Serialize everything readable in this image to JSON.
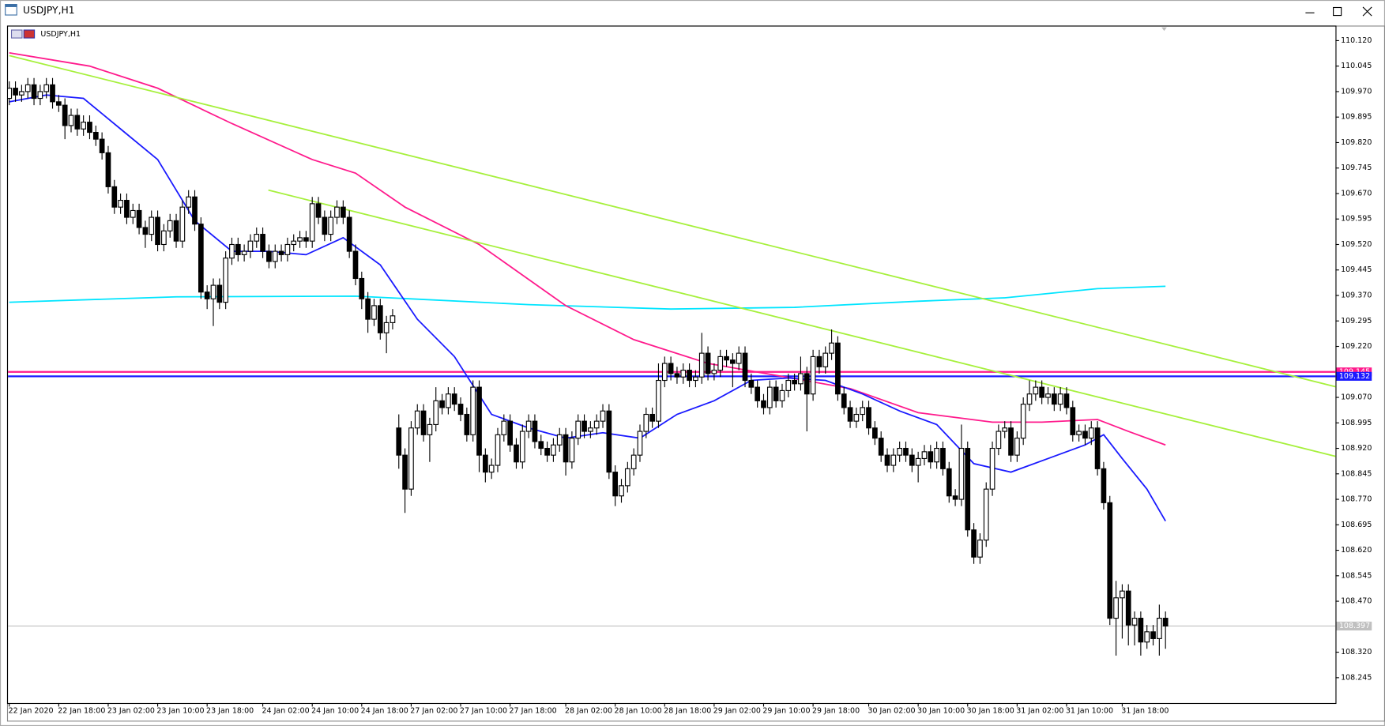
{
  "window": {
    "title": "USDJPY,H1"
  },
  "chart_data": {
    "type": "candlestick",
    "title": "USDJPY,H1",
    "categories": [
      "22 Jan 2020",
      null,
      null,
      null,
      null,
      null,
      null,
      null,
      "22 Jan 18:00",
      null,
      null,
      null,
      null,
      null,
      null,
      null,
      "23 Jan 02:00",
      null,
      null,
      null,
      null,
      null,
      null,
      null,
      "23 Jan 10:00",
      null,
      null,
      null,
      null,
      null,
      null,
      null,
      "23 Jan 18:00",
      null,
      null,
      null,
      null,
      null,
      null,
      null,
      null,
      "24 Jan 02:00",
      null,
      null,
      null,
      null,
      null,
      null,
      null,
      "24 Jan 10:00",
      null,
      null,
      null,
      null,
      null,
      null,
      null,
      "24 Jan 18:00",
      null,
      null,
      null,
      null,
      null,
      null,
      null,
      "27 Jan 02:00",
      null,
      null,
      null,
      null,
      null,
      null,
      null,
      "27 Jan 10:00",
      null,
      null,
      null,
      null,
      null,
      null,
      null,
      "27 Jan 18:00",
      null,
      null,
      null,
      null,
      null,
      null,
      null,
      null,
      "28 Jan 02:00",
      null,
      null,
      null,
      null,
      null,
      null,
      null,
      "28 Jan 10:00",
      null,
      null,
      null,
      null,
      null,
      null,
      null,
      "28 Jan 18:00",
      null,
      null,
      null,
      null,
      null,
      null,
      null,
      "29 Jan 02:00",
      null,
      null,
      null,
      null,
      null,
      null,
      null,
      "29 Jan 10:00",
      null,
      null,
      null,
      null,
      null,
      null,
      null,
      "29 Jan 18:00",
      null,
      null,
      null,
      null,
      null,
      null,
      null,
      null,
      "30 Jan 02:00",
      null,
      null,
      null,
      null,
      null,
      null,
      null,
      "30 Jan 10:00",
      null,
      null,
      null,
      null,
      null,
      null,
      null,
      "30 Jan 18:00",
      null,
      null,
      null,
      null,
      null,
      null,
      null,
      "31 Jan 02:00",
      null,
      null,
      null,
      null,
      null,
      null,
      null,
      "31 Jan 10:00",
      null,
      null,
      null,
      null,
      null,
      null,
      null,
      null,
      "31 Jan 18:00",
      null,
      null,
      null,
      null,
      null,
      null,
      null
    ],
    "open": [
      109.95,
      109.98,
      109.96,
      109.97,
      109.99,
      109.95,
      109.97,
      109.99,
      109.94,
      109.93,
      109.87,
      109.9,
      109.86,
      109.88,
      109.85,
      109.83,
      109.79,
      109.69,
      109.63,
      109.65,
      109.6,
      109.62,
      109.57,
      109.55,
      109.6,
      109.52,
      109.56,
      109.59,
      109.53,
      109.63,
      109.66,
      109.58,
      109.38,
      109.36,
      109.4,
      109.35,
      109.48,
      109.52,
      109.49,
      109.5,
      109.53,
      109.55,
      109.5,
      109.47,
      109.5,
      109.49,
      109.52,
      109.53,
      109.54,
      109.53,
      109.64,
      109.6,
      109.55,
      109.6,
      109.63,
      109.6,
      109.5,
      109.42,
      109.36,
      109.3,
      109.34,
      109.26,
      109.29,
      108.98,
      108.9,
      108.8,
      108.98,
      109.03,
      108.96,
      108.99,
      109.06,
      109.04,
      109.08,
      109.05,
      109.02,
      108.96,
      109.1,
      108.9,
      108.85,
      108.87,
      108.96,
      109.0,
      108.93,
      108.88,
      108.97,
      109.0,
      108.94,
      108.92,
      108.9,
      108.93,
      108.96,
      108.88,
      108.95,
      109.0,
      108.97,
      108.98,
      109.0,
      109.03,
      108.85,
      108.78,
      108.81,
      108.86,
      108.9,
      108.97,
      109.02,
      109.0,
      109.12,
      109.17,
      109.14,
      109.13,
      109.15,
      109.12,
      109.13,
      109.2,
      109.14,
      109.15,
      109.19,
      109.18,
      109.17,
      109.2,
      109.12,
      109.1,
      109.06,
      109.04,
      109.1,
      109.06,
      109.09,
      109.12,
      109.11,
      109.14,
      109.08,
      109.19,
      109.16,
      109.2,
      109.23,
      109.08,
      109.04,
      109.0,
      109.02,
      109.04,
      108.98,
      108.95,
      108.9,
      108.87,
      108.9,
      108.92,
      108.9,
      108.87,
      108.89,
      108.91,
      108.88,
      108.92,
      108.86,
      108.78,
      108.77,
      108.92,
      108.68,
      108.6,
      108.65,
      108.8,
      108.92,
      108.97,
      108.98,
      108.9,
      108.95,
      109.05,
      109.08,
      109.1,
      109.07,
      109.08,
      109.05,
      109.08,
      109.04,
      108.96,
      108.97,
      108.95,
      108.98,
      108.86,
      108.76,
      108.42,
      108.48,
      108.5,
      108.4,
      108.42,
      108.35,
      108.38,
      108.36,
      108.42
    ],
    "high": [
      110.0,
      110.0,
      109.99,
      110.01,
      110.01,
      109.99,
      110.01,
      110.01,
      109.96,
      109.95,
      109.92,
      109.92,
      109.9,
      109.9,
      109.87,
      109.85,
      109.81,
      109.71,
      109.67,
      109.67,
      109.64,
      109.64,
      109.59,
      109.62,
      109.62,
      109.58,
      109.61,
      109.61,
      109.65,
      109.68,
      109.68,
      109.6,
      109.4,
      109.42,
      109.42,
      109.5,
      109.54,
      109.54,
      109.52,
      109.55,
      109.57,
      109.57,
      109.52,
      109.52,
      109.52,
      109.54,
      109.55,
      109.56,
      109.56,
      109.66,
      109.66,
      109.62,
      109.62,
      109.65,
      109.65,
      109.62,
      109.52,
      109.44,
      109.38,
      109.36,
      109.36,
      109.31,
      109.33,
      109.02,
      108.92,
      109.0,
      109.05,
      109.05,
      109.01,
      109.1,
      109.08,
      109.1,
      109.1,
      109.07,
      109.04,
      109.12,
      109.12,
      108.92,
      108.89,
      108.98,
      109.02,
      109.02,
      108.95,
      108.99,
      109.02,
      109.02,
      108.96,
      108.94,
      108.95,
      108.98,
      108.98,
      108.97,
      109.02,
      109.02,
      109.0,
      109.02,
      109.05,
      109.05,
      108.87,
      108.83,
      108.88,
      108.92,
      108.99,
      109.04,
      109.04,
      109.17,
      109.19,
      109.19,
      109.16,
      109.17,
      109.17,
      109.15,
      109.26,
      109.22,
      109.17,
      109.21,
      109.21,
      109.2,
      109.22,
      109.22,
      109.14,
      109.12,
      109.08,
      109.12,
      109.12,
      109.11,
      109.14,
      109.14,
      109.19,
      109.16,
      109.21,
      109.21,
      109.22,
      109.27,
      109.25,
      109.1,
      109.06,
      109.04,
      109.06,
      109.06,
      109.0,
      108.97,
      108.92,
      108.92,
      108.94,
      108.94,
      108.92,
      108.91,
      108.93,
      108.93,
      108.94,
      108.94,
      108.88,
      108.8,
      108.99,
      108.94,
      108.7,
      108.67,
      108.82,
      108.94,
      108.99,
      109.0,
      109.0,
      108.97,
      109.07,
      109.12,
      109.12,
      109.12,
      109.1,
      109.1,
      109.1,
      109.1,
      109.06,
      108.99,
      108.99,
      109.0,
      109.0,
      108.88,
      108.78,
      108.53,
      108.52,
      108.52,
      108.44,
      108.44,
      108.4,
      108.4,
      108.46,
      108.44
    ],
    "low": [
      109.93,
      109.94,
      109.94,
      109.95,
      109.93,
      109.93,
      109.95,
      109.92,
      109.91,
      109.83,
      109.85,
      109.84,
      109.84,
      109.83,
      109.81,
      109.77,
      109.67,
      109.61,
      109.61,
      109.58,
      109.58,
      109.55,
      109.51,
      109.53,
      109.5,
      109.5,
      109.54,
      109.51,
      109.51,
      109.61,
      109.56,
      109.36,
      109.33,
      109.28,
      109.33,
      109.33,
      109.46,
      109.47,
      109.47,
      109.48,
      109.51,
      109.48,
      109.45,
      109.45,
      109.47,
      109.47,
      109.5,
      109.51,
      109.51,
      109.51,
      109.58,
      109.53,
      109.53,
      109.58,
      109.58,
      109.48,
      109.4,
      109.33,
      109.26,
      109.28,
      109.24,
      109.2,
      109.27,
      108.86,
      108.73,
      108.78,
      108.96,
      108.94,
      108.88,
      108.97,
      109.02,
      109.02,
      109.03,
      109.0,
      108.94,
      108.94,
      108.85,
      108.82,
      108.83,
      108.85,
      108.94,
      108.91,
      108.86,
      108.86,
      108.95,
      108.92,
      108.9,
      108.88,
      108.88,
      108.91,
      108.84,
      108.86,
      108.93,
      108.95,
      108.95,
      108.96,
      108.98,
      108.83,
      108.75,
      108.76,
      108.79,
      108.84,
      108.88,
      108.95,
      108.98,
      108.98,
      109.1,
      109.12,
      109.11,
      109.11,
      109.1,
      109.1,
      109.11,
      109.12,
      109.12,
      109.13,
      109.16,
      109.1,
      109.15,
      109.1,
      109.08,
      109.04,
      109.02,
      109.02,
      109.04,
      109.04,
      109.07,
      109.09,
      109.09,
      108.97,
      109.06,
      109.14,
      109.14,
      109.18,
      109.06,
      109.02,
      108.98,
      108.98,
      109.0,
      108.96,
      108.93,
      108.88,
      108.85,
      108.85,
      108.88,
      108.88,
      108.85,
      108.82,
      108.87,
      108.86,
      108.86,
      108.84,
      108.76,
      108.75,
      108.75,
      108.66,
      108.58,
      108.58,
      108.63,
      108.78,
      108.9,
      108.95,
      108.88,
      108.88,
      108.93,
      109.03,
      109.06,
      109.05,
      109.05,
      109.03,
      109.03,
      109.02,
      108.94,
      108.94,
      108.93,
      108.93,
      108.84,
      108.74,
      108.4,
      108.31,
      108.36,
      108.34,
      108.34,
      108.31,
      108.33,
      108.34,
      108.31,
      108.33
    ],
    "close": [
      109.98,
      109.96,
      109.97,
      109.99,
      109.95,
      109.97,
      109.99,
      109.94,
      109.93,
      109.87,
      109.9,
      109.86,
      109.88,
      109.85,
      109.83,
      109.79,
      109.69,
      109.63,
      109.65,
      109.6,
      109.62,
      109.57,
      109.55,
      109.6,
      109.52,
      109.56,
      109.59,
      109.53,
      109.63,
      109.66,
      109.58,
      109.38,
      109.36,
      109.4,
      109.35,
      109.48,
      109.52,
      109.49,
      109.5,
      109.53,
      109.55,
      109.5,
      109.47,
      109.5,
      109.49,
      109.52,
      109.53,
      109.54,
      109.53,
      109.64,
      109.6,
      109.55,
      109.6,
      109.63,
      109.6,
      109.5,
      109.42,
      109.36,
      109.3,
      109.34,
      109.26,
      109.29,
      109.31,
      108.9,
      108.8,
      108.98,
      109.03,
      108.96,
      108.99,
      109.06,
      109.04,
      109.08,
      109.05,
      109.02,
      108.96,
      109.1,
      108.9,
      108.85,
      108.87,
      108.96,
      109.0,
      108.93,
      108.88,
      108.97,
      109.0,
      108.94,
      108.92,
      108.9,
      108.93,
      108.96,
      108.88,
      108.95,
      109.0,
      108.97,
      108.98,
      109.0,
      109.03,
      108.85,
      108.78,
      108.81,
      108.86,
      108.9,
      108.97,
      109.02,
      109.0,
      109.12,
      109.17,
      109.14,
      109.13,
      109.15,
      109.12,
      109.13,
      109.2,
      109.14,
      109.15,
      109.19,
      109.18,
      109.17,
      109.2,
      109.12,
      109.1,
      109.06,
      109.04,
      109.1,
      109.06,
      109.09,
      109.12,
      109.11,
      109.14,
      109.08,
      109.19,
      109.16,
      109.2,
      109.23,
      109.08,
      109.04,
      109.0,
      109.02,
      109.04,
      108.98,
      108.95,
      108.9,
      108.87,
      108.9,
      108.92,
      108.9,
      108.87,
      108.89,
      108.91,
      108.88,
      108.92,
      108.86,
      108.78,
      108.77,
      108.92,
      108.68,
      108.6,
      108.65,
      108.8,
      108.92,
      108.97,
      108.98,
      108.9,
      108.95,
      109.05,
      109.08,
      109.1,
      109.07,
      109.08,
      109.05,
      109.08,
      109.04,
      108.96,
      108.97,
      108.95,
      108.98,
      108.86,
      108.76,
      108.42,
      108.48,
      108.5,
      108.4,
      108.42,
      108.35,
      108.38,
      108.36,
      108.42,
      108.397
    ],
    "bull_color": "#ffffff",
    "bear_color": "#000000",
    "ylim": [
      108.173,
      110.159
    ],
    "yticks": [
      {
        "value": 110.12,
        "label": "110.120"
      },
      110.045,
      {
        "value": 109.97,
        "label": "109.970"
      },
      109.895,
      {
        "value": 109.82,
        "label": "109.820"
      },
      109.745,
      {
        "value": 109.67,
        "label": "109.670"
      },
      109.595,
      {
        "value": 109.52,
        "label": "109.520"
      },
      109.445,
      {
        "value": 109.37,
        "label": "109.370"
      },
      109.295,
      {
        "value": 109.22,
        "label": "109.220"
      },
      {
        "value": 109.07,
        "label": "109.070"
      },
      108.995,
      {
        "value": 108.92,
        "label": "108.920"
      },
      108.845,
      {
        "value": 108.77,
        "label": "108.770"
      },
      108.695,
      {
        "value": 108.62,
        "label": "108.620"
      },
      108.545,
      {
        "value": 108.47,
        "label": "108.470"
      },
      {
        "value": 108.32,
        "label": "108.320"
      },
      108.245
    ],
    "lines": [
      {
        "color": "#00e5ff",
        "x": [
          0,
          27,
          56,
          84,
          107,
          127,
          147,
          161,
          176,
          187
        ],
        "values": [
          109.35,
          109.366,
          109.368,
          109.343,
          109.33,
          109.335,
          109.353,
          109.363,
          109.39,
          109.397
        ]
      },
      {
        "color": "#ff1a8c",
        "x": [
          0,
          13,
          24,
          36,
          49,
          56,
          64,
          76,
          90,
          101,
          113,
          124,
          136,
          147,
          159,
          167,
          176,
          181,
          187
        ],
        "values": [
          110.084,
          110.045,
          109.98,
          109.876,
          109.77,
          109.73,
          109.63,
          109.52,
          109.34,
          109.24,
          109.17,
          109.135,
          109.096,
          109.025,
          108.997,
          108.997,
          109.005,
          108.97,
          108.93
        ]
      },
      {
        "color": "#1a1aff",
        "x": [
          0,
          6,
          12,
          18,
          24,
          30,
          36,
          42,
          48,
          54,
          60,
          66,
          72,
          78,
          84,
          90,
          96,
          102,
          108,
          114,
          120,
          126,
          132,
          138,
          144,
          150,
          156,
          162,
          168,
          174,
          177,
          180,
          184,
          187
        ],
        "values": [
          109.94,
          109.96,
          109.95,
          109.86,
          109.77,
          109.59,
          109.5,
          109.5,
          109.49,
          109.54,
          109.46,
          109.3,
          109.19,
          109.02,
          108.98,
          108.95,
          108.966,
          108.95,
          109.02,
          109.06,
          109.12,
          109.127,
          109.12,
          109.08,
          109.03,
          108.99,
          108.875,
          108.85,
          108.89,
          108.93,
          108.96,
          108.89,
          108.8,
          108.706
        ]
      },
      {
        "color": "#a6f03c",
        "x": [
          0,
          214.6
        ],
        "values": [
          110.076,
          109.101
        ]
      },
      {
        "color": "#a6f03c",
        "x": [
          41.9,
          214.6
        ],
        "values": [
          109.68,
          108.896
        ]
      }
    ],
    "hlines": [
      {
        "value": 109.145,
        "color": "#ff1a8c"
      },
      {
        "value": 109.132,
        "color": "#1a1aff"
      },
      {
        "value": 108.397,
        "color": "#c0c0c0"
      }
    ]
  }
}
